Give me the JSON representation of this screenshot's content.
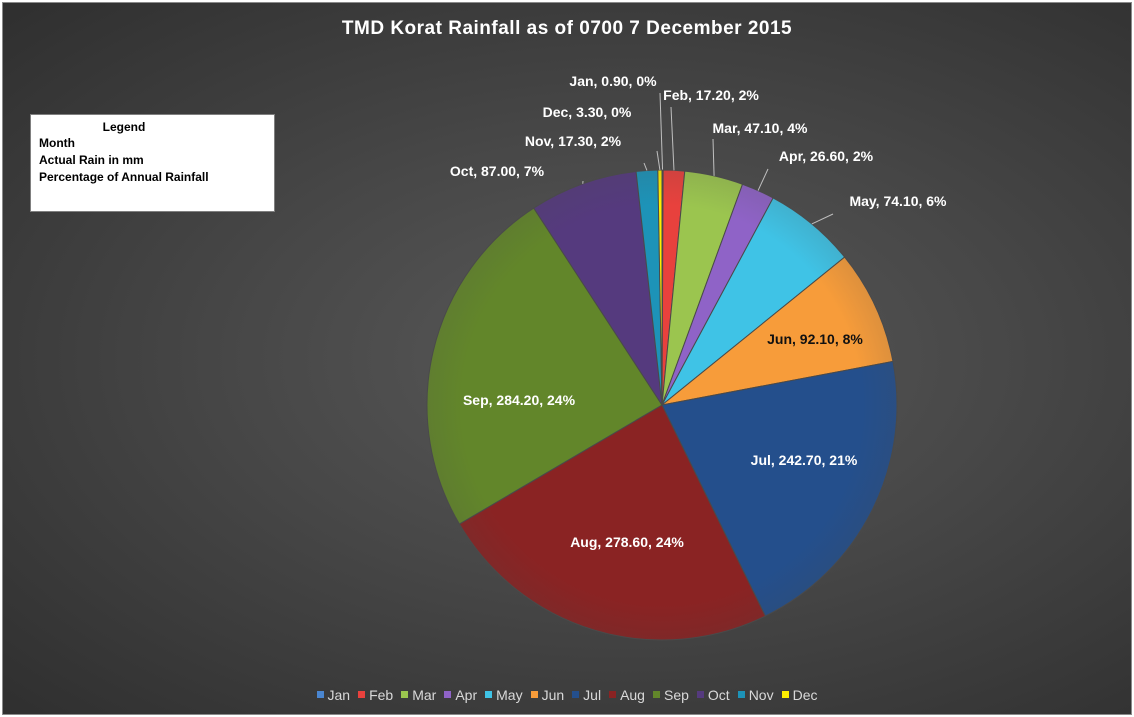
{
  "chart_data": {
    "type": "pie",
    "title": "TMD Korat Rainfall as of 0700 7 December 2015",
    "categories": [
      "Jan",
      "Feb",
      "Mar",
      "Apr",
      "May",
      "Jun",
      "Jul",
      "Aug",
      "Sep",
      "Oct",
      "Nov",
      "Dec"
    ],
    "values": [
      0.9,
      17.2,
      47.1,
      26.6,
      74.1,
      92.1,
      242.7,
      278.6,
      284.2,
      87.0,
      17.3,
      3.3
    ],
    "data_labels": [
      "Jan, 0.90, 0%",
      "Feb, 17.20, 2%",
      "Mar, 47.10, 4%",
      "Apr, 26.60, 2%",
      "May, 74.10, 6%",
      "Jun, 92.10, 8%",
      "Jul, 242.70, 21%",
      "Aug, 278.60, 24%",
      "Sep, 284.20, 24%",
      "Oct, 87.00, 7%",
      "Nov, 17.30, 2%",
      "Dec, 3.30, 0%"
    ],
    "colors": [
      "#4a86d0",
      "#e8413d",
      "#9bc54f",
      "#8f63c7",
      "#3fc3e6",
      "#f79c3a",
      "#244f8c",
      "#8a2323",
      "#62862a",
      "#553a7e",
      "#1d93b8",
      "#ffee00"
    ],
    "legend_position": "bottom",
    "start_angle": "top, clockwise"
  },
  "legend_box": {
    "heading": "Legend",
    "lines": [
      "Month",
      "Actual Rain in mm",
      "Percentage of Annual Rainfall"
    ]
  }
}
